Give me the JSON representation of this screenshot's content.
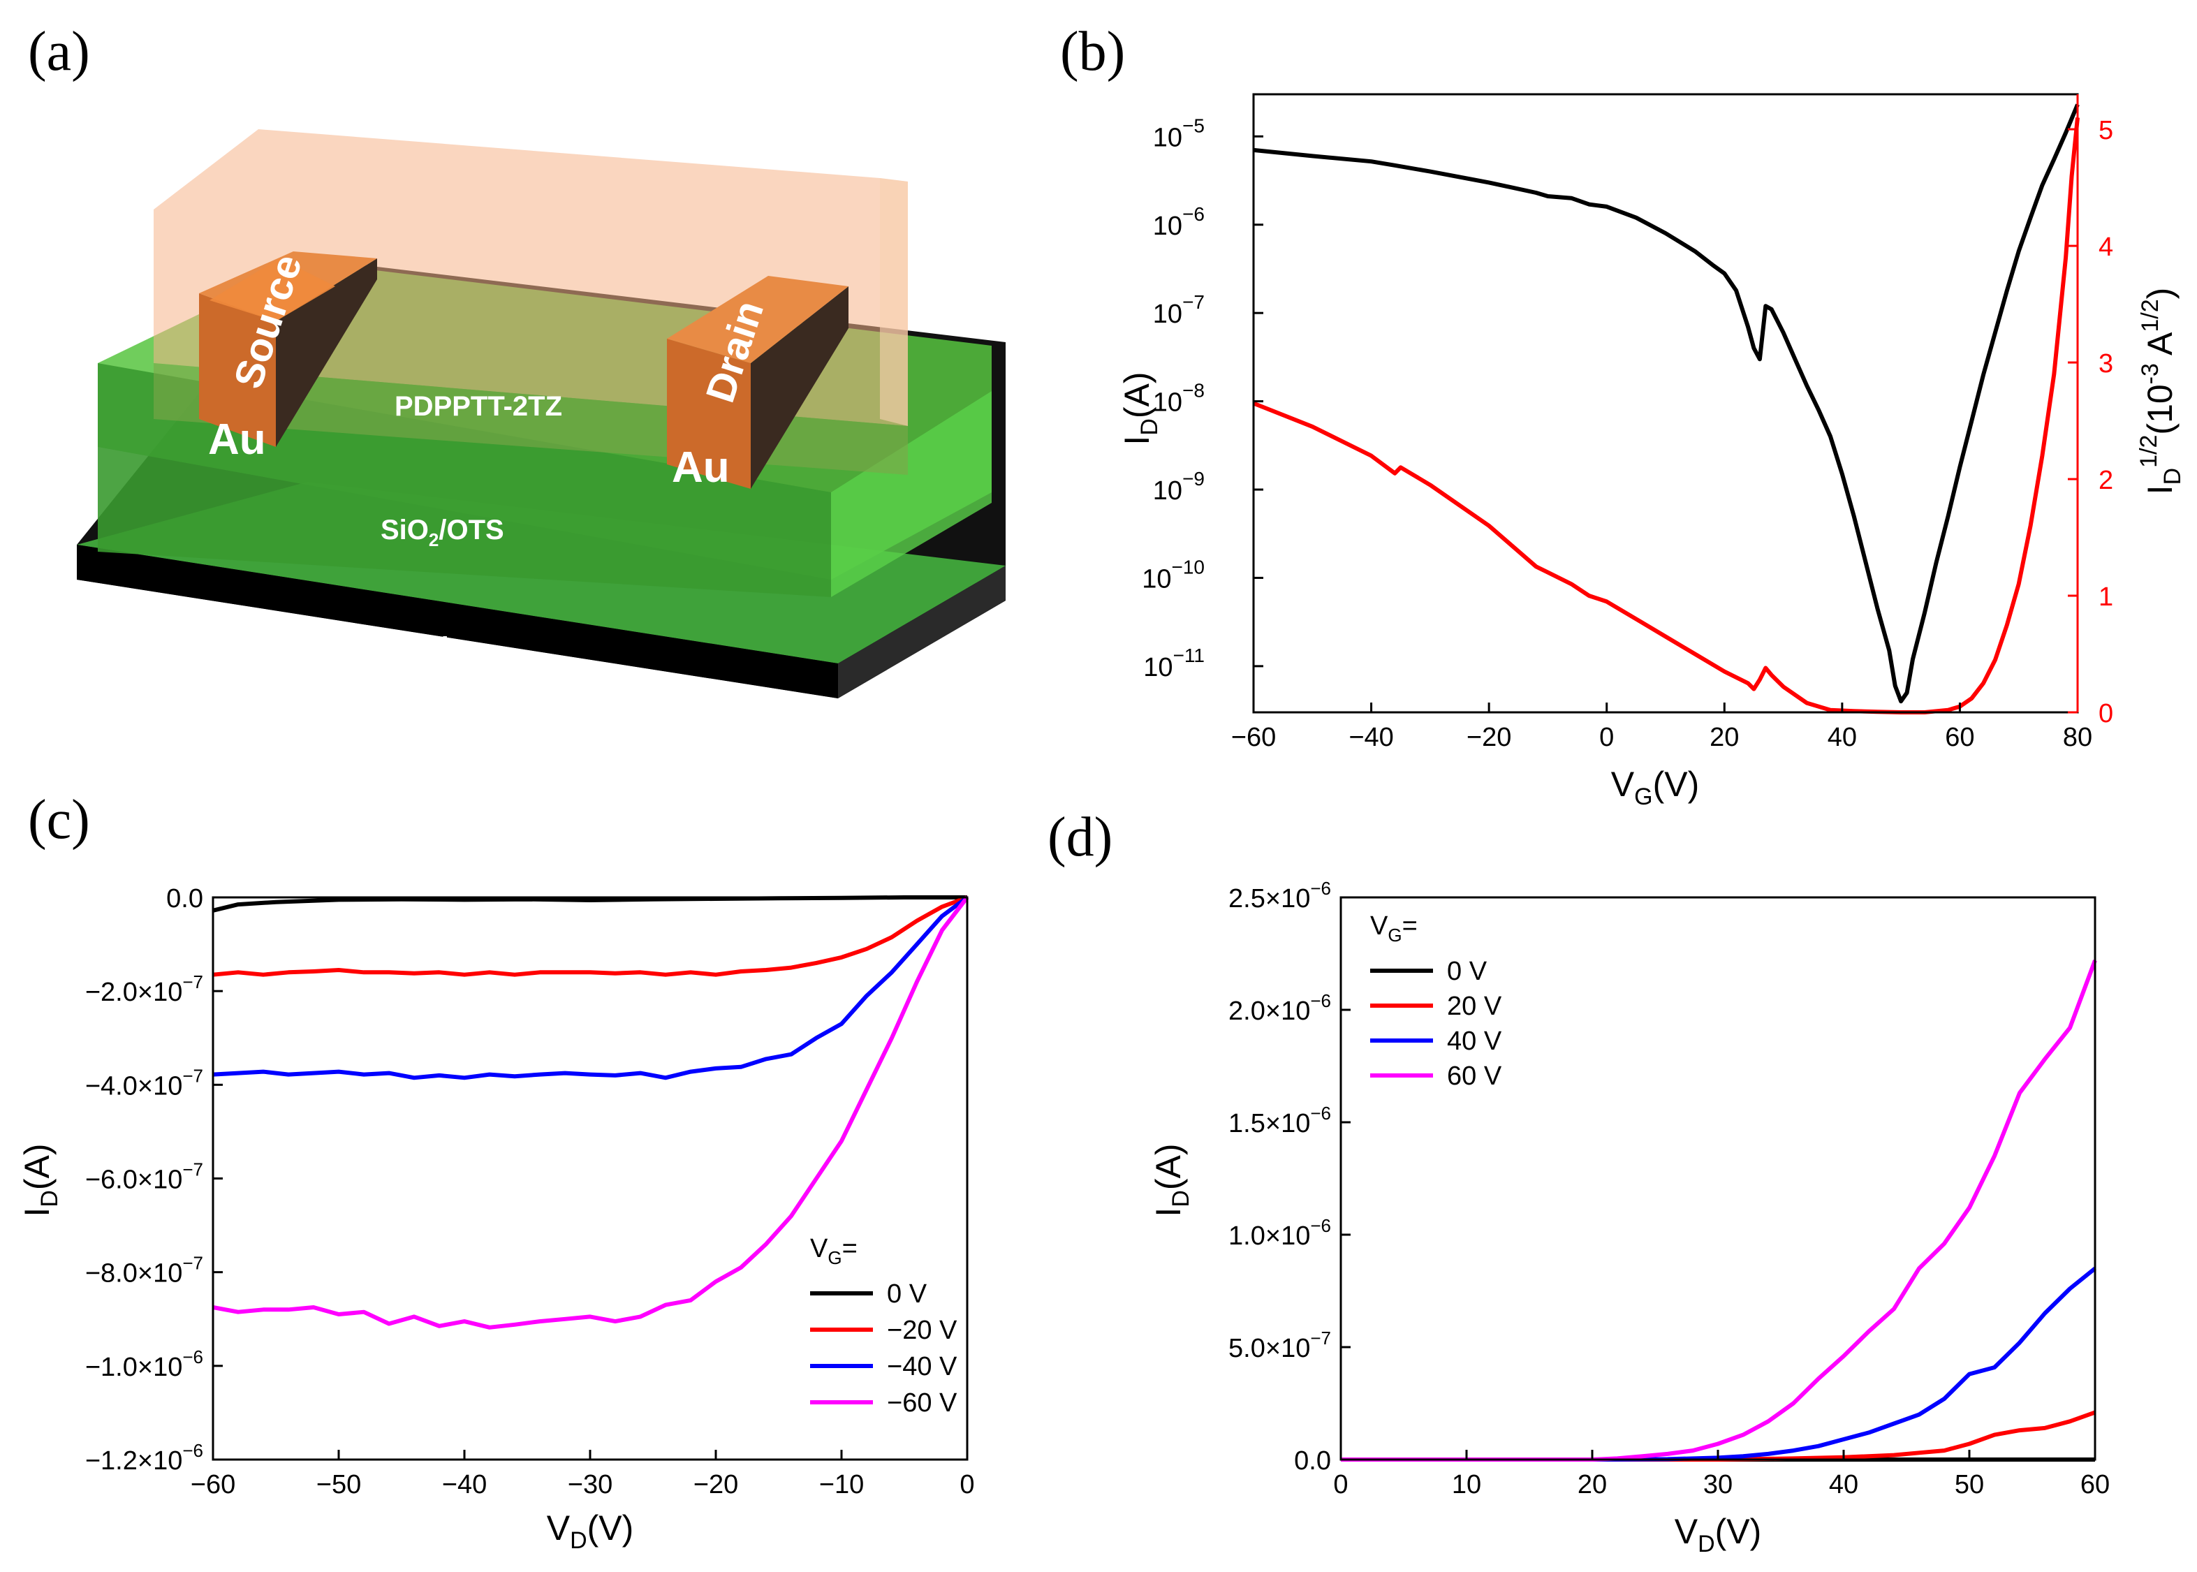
{
  "panels": {
    "a": {
      "label": "(a)"
    },
    "b": {
      "label": "(b)"
    },
    "c": {
      "label": "(c)"
    },
    "d": {
      "label": "(d)"
    }
  },
  "device": {
    "source": "Source",
    "drain": "Drain",
    "au_left": "Au",
    "au_right": "Au",
    "semiconductor": "PDPPTT-2TZ",
    "dielectric_main": "SiO",
    "dielectric_sub": "2",
    "dielectric_rest": "/OTS",
    "substrate": "Si"
  },
  "chart_data": [
    {
      "panel": "b",
      "type": "line",
      "xlabel_main": "V",
      "xlabel_sub": "G",
      "xlabel_rest": "(V)",
      "ylabel_main": "I",
      "ylabel_sub": "D",
      "ylabel_rest": "(A)",
      "y2label_main": "I",
      "y2label_sub": "D",
      "y2label_sup": "1/2",
      "y2label_rest": "(10",
      "y2label_sup2": "-3",
      "y2label_rest2": " A",
      "y2label_sup3": "1/2",
      "y2label_end": ")",
      "xlim": [
        -60,
        80
      ],
      "xticks": [
        -60,
        -40,
        -20,
        0,
        20,
        40,
        60,
        80
      ],
      "xtick_labels": [
        "−60",
        "−40",
        "−20",
        "0",
        "20",
        "40",
        "60",
        "80"
      ],
      "yscale": "log",
      "ylim": [
        3e-12,
        3e-05
      ],
      "yticks": [
        1e-11,
        1e-10,
        1e-09,
        1e-08,
        1e-07,
        1e-06,
        1e-05
      ],
      "ytick_base": "10",
      "ytick_exps": [
        "−11",
        "−10",
        "−9",
        "−8",
        "−7",
        "−6",
        "−5"
      ],
      "y2lim": [
        0,
        5.3
      ],
      "y2ticks": [
        0,
        1,
        2,
        3,
        4,
        5
      ],
      "y2tick_labels": [
        "0",
        "1",
        "2",
        "3",
        "4",
        "5"
      ],
      "y2color": "#ff0000",
      "series": [
        {
          "axis": "left",
          "color": "#000000",
          "x": [
            -60,
            -50,
            -40,
            -36,
            -30,
            -20,
            -12,
            -10,
            -6,
            -3,
            0,
            5,
            10,
            15,
            18,
            20,
            22,
            24,
            25,
            26,
            27,
            28,
            30,
            32,
            34,
            36,
            38,
            40,
            42,
            44,
            46,
            48,
            49,
            50,
            51,
            52,
            54,
            56,
            58,
            60,
            62,
            64,
            66,
            68,
            70,
            72,
            74,
            76,
            78,
            80
          ],
          "y": [
            7e-06,
            6e-06,
            5.2e-06,
            4.7e-06,
            4e-06,
            3e-06,
            2.3e-06,
            2.1e-06,
            2e-06,
            1.7e-06,
            1.6e-06,
            1.2e-06,
            8e-07,
            5e-07,
            3.5e-07,
            2.8e-07,
            1.8e-07,
            7e-08,
            4e-08,
            3e-08,
            1.2e-07,
            1.1e-07,
            6e-08,
            3e-08,
            1.5e-08,
            8e-09,
            4e-09,
            1.5e-09,
            5e-10,
            1.5e-10,
            4.5e-11,
            1.5e-11,
            6e-12,
            4e-12,
            5e-12,
            1.2e-11,
            4e-11,
            1.5e-10,
            5e-10,
            1.8e-09,
            6e-09,
            2e-08,
            6e-08,
            1.8e-07,
            5e-07,
            1.2e-06,
            2.8e-06,
            5.5e-06,
            1.1e-05,
            2.3e-05
          ]
        },
        {
          "axis": "right",
          "color": "#ff0000",
          "x": [
            -60,
            -50,
            -40,
            -36,
            -35,
            -30,
            -20,
            -12,
            -10,
            -6,
            -3,
            0,
            5,
            10,
            15,
            20,
            24,
            25,
            26,
            27,
            28,
            30,
            34,
            38,
            42,
            46,
            50,
            54,
            58,
            60,
            62,
            64,
            66,
            68,
            70,
            72,
            74,
            76,
            78,
            79,
            80
          ],
          "y": [
            2.65,
            2.45,
            2.2,
            2.05,
            2.1,
            1.95,
            1.6,
            1.25,
            1.2,
            1.1,
            1.0,
            0.95,
            0.8,
            0.65,
            0.5,
            0.35,
            0.25,
            0.2,
            0.28,
            0.38,
            0.32,
            0.22,
            0.08,
            0.02,
            0.01,
            0.005,
            0.0,
            0.0,
            0.02,
            0.05,
            0.12,
            0.25,
            0.45,
            0.75,
            1.1,
            1.6,
            2.2,
            2.9,
            3.9,
            4.6,
            5.1
          ]
        }
      ]
    },
    {
      "panel": "c",
      "type": "line",
      "xlabel_main": "V",
      "xlabel_sub": "D",
      "xlabel_rest": "(V)",
      "ylabel_main": "I",
      "ylabel_sub": "D",
      "ylabel_rest": "(A)",
      "xlim": [
        -60,
        0
      ],
      "xticks": [
        -60,
        -50,
        -40,
        -30,
        -20,
        -10,
        0
      ],
      "xtick_labels": [
        "−60",
        "−50",
        "−40",
        "−30",
        "−20",
        "−10",
        "0"
      ],
      "ylim": [
        -1.2e-06,
        0
      ],
      "yticks": [
        0,
        -2e-07,
        -4e-07,
        -6e-07,
        -8e-07,
        -1e-06,
        -1.2e-06
      ],
      "ytick_mant": [
        "0.0",
        "−2.0×10",
        "−4.0×10",
        "−6.0×10",
        "−8.0×10",
        "−1.0×10",
        "−1.2×10"
      ],
      "ytick_exp": [
        "",
        "−7",
        "−7",
        "−7",
        "−7",
        "−6",
        "−6"
      ],
      "legend_title_main": "V",
      "legend_title_sub": "G",
      "legend_title_rest": "=",
      "legend_position": "bottom-right",
      "series": [
        {
          "name": "0 V",
          "color": "#000000",
          "x": [
            -60,
            -58,
            -55,
            -50,
            -45,
            -40,
            -35,
            -30,
            -25,
            -20,
            -15,
            -10,
            -5,
            0
          ],
          "y": [
            -2.8e-08,
            -1.5e-08,
            -1e-08,
            -5e-09,
            -4e-09,
            -5e-09,
            -4e-09,
            -6e-09,
            -4e-09,
            -3e-09,
            -2e-09,
            -1e-09,
            0,
            0
          ]
        },
        {
          "name": "−20 V",
          "color": "#ff0000",
          "x": [
            -60,
            -58,
            -56,
            -54,
            -52,
            -50,
            -48,
            -46,
            -44,
            -42,
            -40,
            -38,
            -36,
            -34,
            -32,
            -30,
            -28,
            -26,
            -24,
            -22,
            -20,
            -18,
            -16,
            -14,
            -12,
            -10,
            -8,
            -6,
            -4,
            -2,
            0
          ],
          "y": [
            -1.65e-07,
            -1.6e-07,
            -1.65e-07,
            -1.6e-07,
            -1.58e-07,
            -1.55e-07,
            -1.6e-07,
            -1.6e-07,
            -1.62e-07,
            -1.6e-07,
            -1.65e-07,
            -1.6e-07,
            -1.65e-07,
            -1.6e-07,
            -1.6e-07,
            -1.6e-07,
            -1.62e-07,
            -1.6e-07,
            -1.65e-07,
            -1.6e-07,
            -1.65e-07,
            -1.58e-07,
            -1.55e-07,
            -1.5e-07,
            -1.4e-07,
            -1.28e-07,
            -1.1e-07,
            -8.5e-08,
            -5e-08,
            -2e-08,
            0
          ]
        },
        {
          "name": "−40 V",
          "color": "#0000ff",
          "x": [
            -60,
            -58,
            -56,
            -54,
            -52,
            -50,
            -48,
            -46,
            -44,
            -42,
            -40,
            -38,
            -36,
            -34,
            -32,
            -30,
            -28,
            -26,
            -24,
            -22,
            -20,
            -18,
            -16,
            -14,
            -12,
            -10,
            -8,
            -6,
            -4,
            -2,
            0
          ],
          "y": [
            -3.78e-07,
            -3.75e-07,
            -3.72e-07,
            -3.78e-07,
            -3.75e-07,
            -3.72e-07,
            -3.78e-07,
            -3.75e-07,
            -3.85e-07,
            -3.8e-07,
            -3.85e-07,
            -3.78e-07,
            -3.82e-07,
            -3.78e-07,
            -3.75e-07,
            -3.78e-07,
            -3.8e-07,
            -3.75e-07,
            -3.85e-07,
            -3.72e-07,
            -3.65e-07,
            -3.62e-07,
            -3.45e-07,
            -3.35e-07,
            -3e-07,
            -2.7e-07,
            -2.1e-07,
            -1.6e-07,
            -1e-07,
            -4e-08,
            0
          ]
        },
        {
          "name": "−60 V",
          "color": "#ff00ff",
          "x": [
            -60,
            -58,
            -56,
            -54,
            -52,
            -50,
            -48,
            -46,
            -44,
            -42,
            -40,
            -38,
            -36,
            -34,
            -32,
            -30,
            -28,
            -26,
            -24,
            -22,
            -20,
            -18,
            -16,
            -14,
            -12,
            -10,
            -8,
            -6,
            -4,
            -2,
            0
          ],
          "y": [
            -8.75e-07,
            -8.85e-07,
            -8.8e-07,
            -8.8e-07,
            -8.75e-07,
            -8.9e-07,
            -8.85e-07,
            -9.1e-07,
            -8.95e-07,
            -9.15e-07,
            -9.05e-07,
            -9.18e-07,
            -9.12e-07,
            -9.05e-07,
            -9e-07,
            -8.95e-07,
            -9.05e-07,
            -8.95e-07,
            -8.7e-07,
            -8.6e-07,
            -8.2e-07,
            -7.9e-07,
            -7.4e-07,
            -6.8e-07,
            -6e-07,
            -5.2e-07,
            -4.1e-07,
            -3e-07,
            -1.8e-07,
            -7e-08,
            0
          ]
        }
      ]
    },
    {
      "panel": "d",
      "type": "line",
      "xlabel_main": "V",
      "xlabel_sub": "D",
      "xlabel_rest": "(V)",
      "ylabel_main": "I",
      "ylabel_sub": "D",
      "ylabel_rest": "(A)",
      "xlim": [
        0,
        60
      ],
      "xticks": [
        0,
        10,
        20,
        30,
        40,
        50,
        60
      ],
      "xtick_labels": [
        "0",
        "10",
        "20",
        "30",
        "40",
        "50",
        "60"
      ],
      "ylim": [
        0,
        2.5e-06
      ],
      "yticks": [
        0,
        5e-07,
        1e-06,
        1.5e-06,
        2e-06,
        2.5e-06
      ],
      "ytick_mant": [
        "0.0",
        "5.0×10",
        "1.0×10",
        "1.5×10",
        "2.0×10",
        "2.5×10"
      ],
      "ytick_exp": [
        "",
        "−7",
        "−6",
        "−6",
        "−6",
        "−6"
      ],
      "legend_title_main": "V",
      "legend_title_sub": "G",
      "legend_title_rest": "=",
      "legend_position": "top-left",
      "series": [
        {
          "name": "0 V",
          "color": "#000000",
          "x": [
            0,
            10,
            20,
            30,
            40,
            50,
            60
          ],
          "y": [
            0,
            0,
            0,
            0,
            0,
            0,
            0
          ]
        },
        {
          "name": "20 V",
          "color": "#ff0000",
          "x": [
            0,
            20,
            30,
            36,
            40,
            44,
            46,
            48,
            50,
            52,
            54,
            56,
            58,
            60
          ],
          "y": [
            0,
            0,
            0,
            5e-09,
            1e-08,
            2e-08,
            3e-08,
            4e-08,
            7e-08,
            1.1e-07,
            1.3e-07,
            1.4e-07,
            1.7e-07,
            2.1e-07
          ]
        },
        {
          "name": "40 V",
          "color": "#0000ff",
          "x": [
            0,
            20,
            26,
            30,
            32,
            34,
            36,
            38,
            40,
            42,
            44,
            46,
            48,
            50,
            52,
            54,
            56,
            58,
            60
          ],
          "y": [
            0,
            0,
            2e-09,
            8e-09,
            1.5e-08,
            2.5e-08,
            4e-08,
            6e-08,
            9e-08,
            1.2e-07,
            1.6e-07,
            2e-07,
            2.7e-07,
            3.8e-07,
            4.1e-07,
            5.2e-07,
            6.5e-07,
            7.6e-07,
            8.5e-07
          ]
        },
        {
          "name": "60 V",
          "color": "#ff00ff",
          "x": [
            0,
            20,
            22,
            24,
            26,
            28,
            30,
            32,
            34,
            36,
            38,
            40,
            42,
            44,
            46,
            48,
            50,
            52,
            54,
            56,
            58,
            60
          ],
          "y": [
            0,
            0,
            5e-09,
            1.5e-08,
            2.5e-08,
            4e-08,
            7e-08,
            1.1e-07,
            1.7e-07,
            2.5e-07,
            3.6e-07,
            4.6e-07,
            5.7e-07,
            6.7e-07,
            8.5e-07,
            9.6e-07,
            1.12e-06,
            1.35e-06,
            1.63e-06,
            1.78e-06,
            1.92e-06,
            2.22e-06
          ]
        }
      ]
    }
  ]
}
